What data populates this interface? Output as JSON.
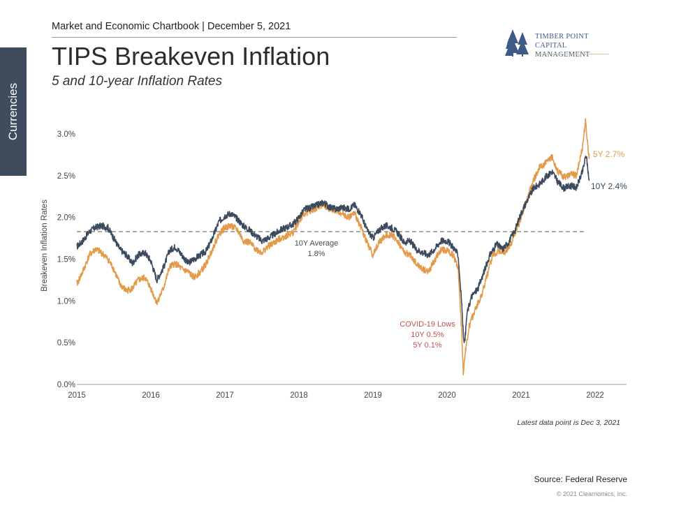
{
  "side_tab": {
    "label": "Currencies"
  },
  "header": {
    "chartbook": "Market and Economic Chartbook | December 5, 2021",
    "title": "TIPS Breakeven Inflation",
    "subtitle": "5 and 10-year Inflation Rates"
  },
  "logo": {
    "line1": "TIMBER POINT",
    "line2": "CAPITAL MANAGEMENT",
    "color": "#3e5a86"
  },
  "footer": {
    "note": "Latest data point is Dec 3, 2021",
    "source": "Source: Federal Reserve",
    "copyright": "© 2021 Clearnomics, Inc."
  },
  "chart_data": {
    "type": "line",
    "ylabel": "Breakeven Inflation Rates",
    "xlim": [
      2015,
      2022.5
    ],
    "ylim": [
      0,
      3.2
    ],
    "x_ticks": [
      "2015",
      "2016",
      "2017",
      "2018",
      "2019",
      "2020",
      "2021",
      "2022"
    ],
    "y_ticks": [
      "0.0%",
      "0.5%",
      "1.0%",
      "1.5%",
      "2.0%",
      "2.5%",
      "3.0%"
    ],
    "grid": false,
    "reference_line": {
      "value": 1.83,
      "label_line1": "10Y Average",
      "label_line2": "1.8%"
    },
    "annotation": {
      "line1": "COVID-19 Lows",
      "line2": "10Y 0.5%",
      "line3": "5Y 0.1%",
      "color": "#c0504d"
    },
    "series": [
      {
        "name": "10Y 2.4%",
        "color": "#3b4a5c",
        "points": [
          [
            2015.0,
            1.65
          ],
          [
            2015.08,
            1.72
          ],
          [
            2015.17,
            1.83
          ],
          [
            2015.25,
            1.88
          ],
          [
            2015.33,
            1.9
          ],
          [
            2015.42,
            1.88
          ],
          [
            2015.5,
            1.75
          ],
          [
            2015.58,
            1.62
          ],
          [
            2015.67,
            1.55
          ],
          [
            2015.75,
            1.45
          ],
          [
            2015.83,
            1.55
          ],
          [
            2015.92,
            1.58
          ],
          [
            2016.0,
            1.48
          ],
          [
            2016.08,
            1.25
          ],
          [
            2016.17,
            1.4
          ],
          [
            2016.25,
            1.6
          ],
          [
            2016.33,
            1.65
          ],
          [
            2016.42,
            1.55
          ],
          [
            2016.5,
            1.45
          ],
          [
            2016.58,
            1.5
          ],
          [
            2016.67,
            1.55
          ],
          [
            2016.75,
            1.6
          ],
          [
            2016.83,
            1.75
          ],
          [
            2016.92,
            1.95
          ],
          [
            2017.0,
            2.02
          ],
          [
            2017.08,
            2.05
          ],
          [
            2017.17,
            1.98
          ],
          [
            2017.25,
            1.9
          ],
          [
            2017.33,
            1.85
          ],
          [
            2017.42,
            1.78
          ],
          [
            2017.5,
            1.72
          ],
          [
            2017.58,
            1.75
          ],
          [
            2017.67,
            1.8
          ],
          [
            2017.75,
            1.85
          ],
          [
            2017.83,
            1.88
          ],
          [
            2017.92,
            1.92
          ],
          [
            2018.0,
            2.0
          ],
          [
            2018.08,
            2.1
          ],
          [
            2018.17,
            2.12
          ],
          [
            2018.25,
            2.15
          ],
          [
            2018.33,
            2.18
          ],
          [
            2018.42,
            2.12
          ],
          [
            2018.5,
            2.1
          ],
          [
            2018.58,
            2.12
          ],
          [
            2018.67,
            2.1
          ],
          [
            2018.75,
            2.15
          ],
          [
            2018.83,
            2.05
          ],
          [
            2018.92,
            1.85
          ],
          [
            2019.0,
            1.75
          ],
          [
            2019.08,
            1.85
          ],
          [
            2019.17,
            1.9
          ],
          [
            2019.25,
            1.88
          ],
          [
            2019.33,
            1.82
          ],
          [
            2019.42,
            1.7
          ],
          [
            2019.5,
            1.72
          ],
          [
            2019.58,
            1.62
          ],
          [
            2019.67,
            1.58
          ],
          [
            2019.75,
            1.55
          ],
          [
            2019.83,
            1.62
          ],
          [
            2019.92,
            1.72
          ],
          [
            2020.0,
            1.72
          ],
          [
            2020.08,
            1.65
          ],
          [
            2020.15,
            1.55
          ],
          [
            2020.2,
            0.95
          ],
          [
            2020.22,
            0.6
          ],
          [
            2020.24,
            0.5
          ],
          [
            2020.27,
            0.85
          ],
          [
            2020.33,
            1.05
          ],
          [
            2020.42,
            1.15
          ],
          [
            2020.5,
            1.35
          ],
          [
            2020.58,
            1.55
          ],
          [
            2020.67,
            1.68
          ],
          [
            2020.75,
            1.62
          ],
          [
            2020.83,
            1.7
          ],
          [
            2020.92,
            1.85
          ],
          [
            2021.0,
            2.05
          ],
          [
            2021.08,
            2.2
          ],
          [
            2021.17,
            2.35
          ],
          [
            2021.25,
            2.4
          ],
          [
            2021.33,
            2.48
          ],
          [
            2021.42,
            2.55
          ],
          [
            2021.5,
            2.42
          ],
          [
            2021.58,
            2.35
          ],
          [
            2021.67,
            2.38
          ],
          [
            2021.75,
            2.36
          ],
          [
            2021.83,
            2.55
          ],
          [
            2021.88,
            2.75
          ],
          [
            2021.92,
            2.44
          ]
        ]
      },
      {
        "name": "5Y 2.7%",
        "color": "#e39a4a",
        "points": [
          [
            2015.0,
            1.2
          ],
          [
            2015.08,
            1.35
          ],
          [
            2015.17,
            1.55
          ],
          [
            2015.25,
            1.62
          ],
          [
            2015.33,
            1.58
          ],
          [
            2015.42,
            1.5
          ],
          [
            2015.5,
            1.38
          ],
          [
            2015.58,
            1.2
          ],
          [
            2015.67,
            1.12
          ],
          [
            2015.75,
            1.15
          ],
          [
            2015.83,
            1.25
          ],
          [
            2015.92,
            1.28
          ],
          [
            2016.0,
            1.15
          ],
          [
            2016.08,
            0.98
          ],
          [
            2016.17,
            1.15
          ],
          [
            2016.25,
            1.4
          ],
          [
            2016.33,
            1.45
          ],
          [
            2016.42,
            1.38
          ],
          [
            2016.5,
            1.35
          ],
          [
            2016.58,
            1.28
          ],
          [
            2016.67,
            1.35
          ],
          [
            2016.75,
            1.45
          ],
          [
            2016.83,
            1.62
          ],
          [
            2016.92,
            1.8
          ],
          [
            2017.0,
            1.88
          ],
          [
            2017.08,
            1.9
          ],
          [
            2017.17,
            1.85
          ],
          [
            2017.25,
            1.72
          ],
          [
            2017.33,
            1.7
          ],
          [
            2017.42,
            1.62
          ],
          [
            2017.5,
            1.58
          ],
          [
            2017.58,
            1.65
          ],
          [
            2017.67,
            1.7
          ],
          [
            2017.75,
            1.75
          ],
          [
            2017.83,
            1.78
          ],
          [
            2017.92,
            1.82
          ],
          [
            2018.0,
            1.95
          ],
          [
            2018.08,
            2.05
          ],
          [
            2018.17,
            2.08
          ],
          [
            2018.25,
            2.12
          ],
          [
            2018.33,
            2.15
          ],
          [
            2018.42,
            2.1
          ],
          [
            2018.5,
            2.08
          ],
          [
            2018.58,
            2.05
          ],
          [
            2018.67,
            2.0
          ],
          [
            2018.75,
            2.05
          ],
          [
            2018.83,
            1.9
          ],
          [
            2018.92,
            1.7
          ],
          [
            2019.0,
            1.55
          ],
          [
            2019.08,
            1.7
          ],
          [
            2019.17,
            1.78
          ],
          [
            2019.25,
            1.8
          ],
          [
            2019.33,
            1.72
          ],
          [
            2019.42,
            1.58
          ],
          [
            2019.5,
            1.55
          ],
          [
            2019.58,
            1.45
          ],
          [
            2019.67,
            1.38
          ],
          [
            2019.75,
            1.35
          ],
          [
            2019.83,
            1.48
          ],
          [
            2019.92,
            1.62
          ],
          [
            2020.0,
            1.6
          ],
          [
            2020.08,
            1.55
          ],
          [
            2020.15,
            1.4
          ],
          [
            2020.2,
            0.6
          ],
          [
            2020.22,
            0.15
          ],
          [
            2020.25,
            0.4
          ],
          [
            2020.3,
            0.7
          ],
          [
            2020.38,
            0.9
          ],
          [
            2020.46,
            1.05
          ],
          [
            2020.54,
            1.3
          ],
          [
            2020.62,
            1.55
          ],
          [
            2020.7,
            1.6
          ],
          [
            2020.78,
            1.58
          ],
          [
            2020.86,
            1.68
          ],
          [
            2020.94,
            1.85
          ],
          [
            2021.0,
            2.0
          ],
          [
            2021.08,
            2.22
          ],
          [
            2021.17,
            2.45
          ],
          [
            2021.25,
            2.6
          ],
          [
            2021.33,
            2.65
          ],
          [
            2021.42,
            2.72
          ],
          [
            2021.5,
            2.55
          ],
          [
            2021.58,
            2.48
          ],
          [
            2021.67,
            2.52
          ],
          [
            2021.75,
            2.5
          ],
          [
            2021.83,
            2.85
          ],
          [
            2021.87,
            3.15
          ],
          [
            2021.92,
            2.7
          ]
        ]
      }
    ]
  }
}
